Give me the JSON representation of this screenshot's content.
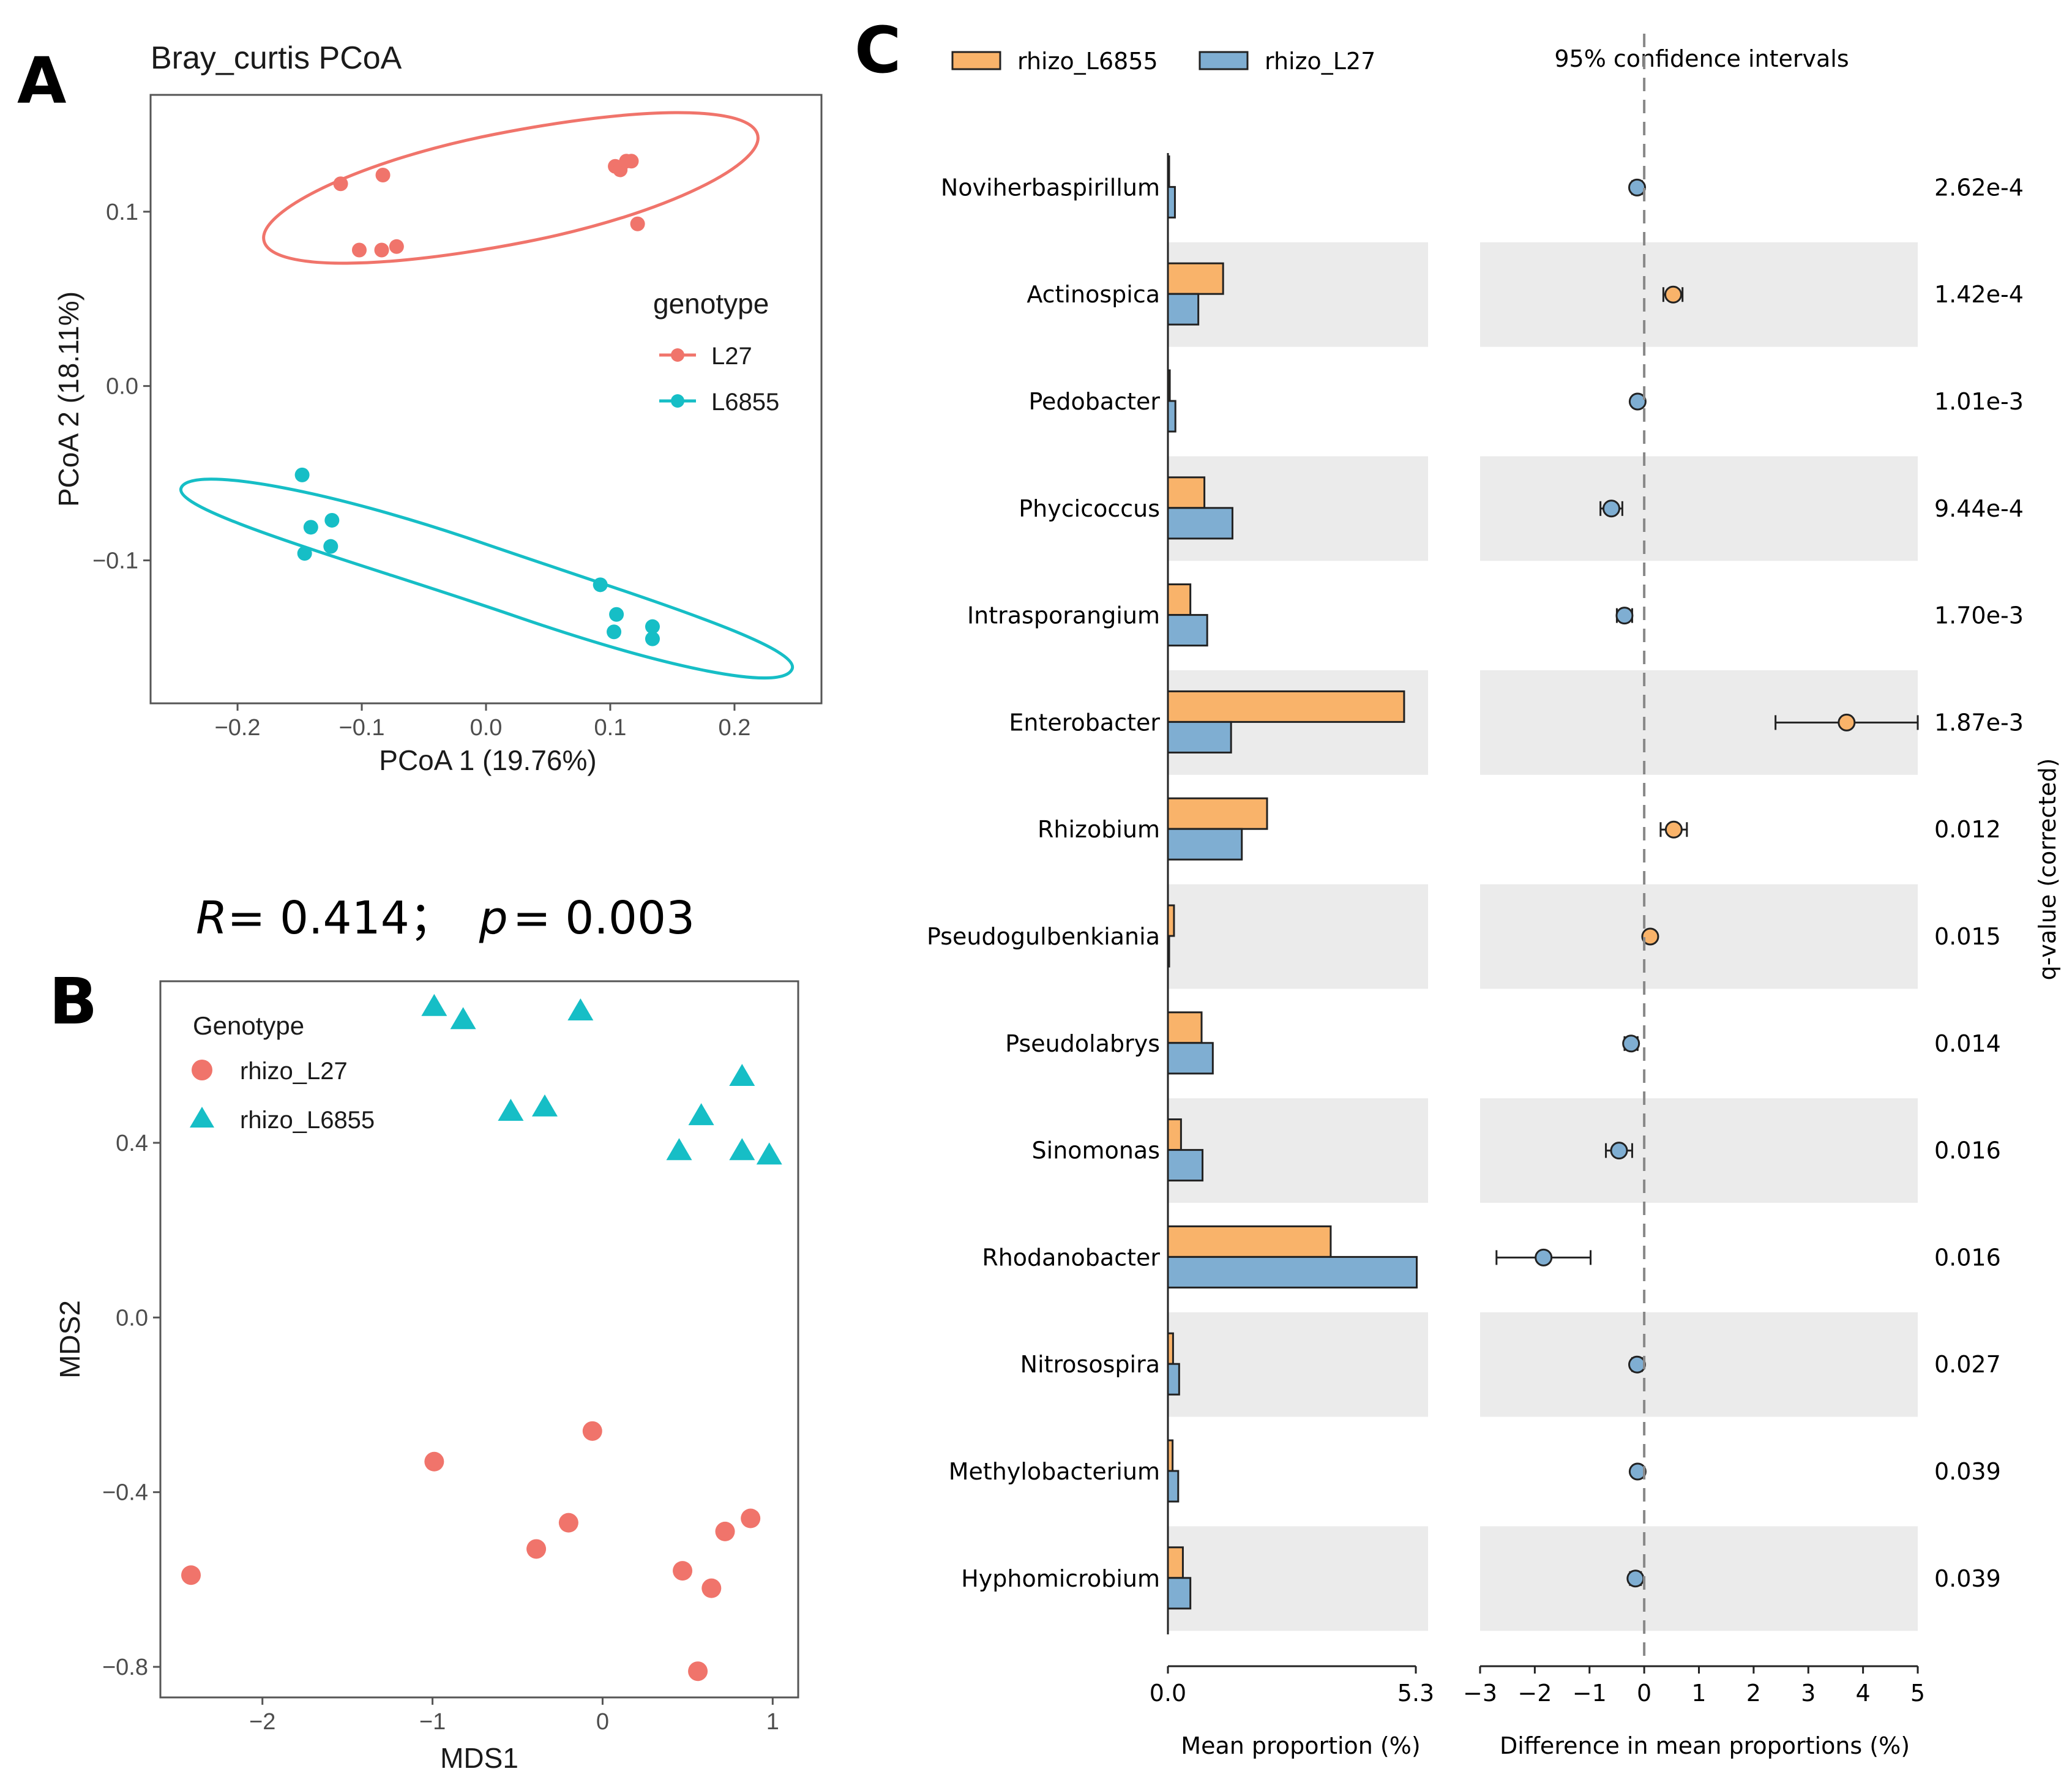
{
  "colors": {
    "l27_red": "#F0746B",
    "l6855_teal": "#16BEC6",
    "orange": "#F9B36A",
    "blue": "#7FAED2",
    "band": "#EBEBEB",
    "axis": "#444444",
    "grid_text": "#4D4D4D"
  },
  "panels": {
    "a_letter": "A",
    "b_letter": "B",
    "c_letter": "C"
  },
  "stats_text": {
    "r_symbol": "R",
    "r_value": "= 0.414；",
    "p_symbol": "p",
    "p_value": "= 0.003"
  },
  "chart_data": [
    {
      "id": "A",
      "type": "scatter",
      "title": "Bray_curtis PCoA",
      "xlabel": "PCoA 1 (19.76%)",
      "ylabel": "PCoA 2 (18.11%)",
      "xlim": [
        -0.27,
        0.27
      ],
      "ylim": [
        -0.182,
        0.167
      ],
      "xticks": [
        -0.2,
        -0.1,
        0.0,
        0.1,
        0.2
      ],
      "xtick_labels": [
        "−0.2",
        "−0.1",
        "0.0",
        "0.1",
        "0.2"
      ],
      "yticks": [
        0.1,
        0.0,
        -0.1
      ],
      "ytick_labels": [
        "0.1",
        "0.0",
        "−0.1"
      ],
      "legend_title": "genotype",
      "legend_position": "right",
      "ellipses": true,
      "series": [
        {
          "name": "L27",
          "color": "#F0746B",
          "points": [
            [
              -0.117,
              0.116
            ],
            [
              -0.083,
              0.121
            ],
            [
              -0.102,
              0.078
            ],
            [
              -0.084,
              0.078
            ],
            [
              -0.072,
              0.08
            ],
            [
              0.104,
              0.126
            ],
            [
              0.108,
              0.124
            ],
            [
              0.113,
              0.129
            ],
            [
              0.117,
              0.129
            ],
            [
              0.122,
              0.093
            ]
          ]
        },
        {
          "name": "L6855",
          "color": "#16BEC6",
          "points": [
            [
              -0.148,
              -0.051
            ],
            [
              -0.141,
              -0.081
            ],
            [
              -0.124,
              -0.077
            ],
            [
              -0.125,
              -0.092
            ],
            [
              -0.146,
              -0.096
            ],
            [
              0.092,
              -0.114
            ],
            [
              0.105,
              -0.131
            ],
            [
              0.103,
              -0.141
            ],
            [
              0.134,
              -0.138
            ],
            [
              0.134,
              -0.145
            ]
          ]
        }
      ]
    },
    {
      "id": "B",
      "type": "scatter",
      "xlabel": "MDS1",
      "ylabel": "MDS2",
      "xlim": [
        -2.6,
        1.15
      ],
      "ylim": [
        -0.87,
        0.77
      ],
      "xticks": [
        -2,
        -1,
        0,
        1
      ],
      "xtick_labels": [
        "−2",
        "−1",
        "0",
        "1"
      ],
      "yticks": [
        0.4,
        0.0,
        -0.4,
        -0.8
      ],
      "ytick_labels": [
        "0.4",
        "0.0",
        "−0.4",
        "−0.8"
      ],
      "legend_title": "Genotype",
      "legend_position": "top-left",
      "series": [
        {
          "name": "rhizo_L27",
          "marker": "circle",
          "color": "#F0746B",
          "points": [
            [
              -2.42,
              -0.59
            ],
            [
              -0.99,
              -0.33
            ],
            [
              -0.06,
              -0.26
            ],
            [
              -0.2,
              -0.47
            ],
            [
              -0.39,
              -0.53
            ],
            [
              0.47,
              -0.58
            ],
            [
              0.64,
              -0.62
            ],
            [
              0.72,
              -0.49
            ],
            [
              0.87,
              -0.46
            ],
            [
              0.56,
              -0.81
            ]
          ]
        },
        {
          "name": "rhizo_L6855",
          "marker": "triangle",
          "color": "#16BEC6",
          "points": [
            [
              -0.99,
              0.71
            ],
            [
              -0.82,
              0.68
            ],
            [
              -0.13,
              0.7
            ],
            [
              -0.54,
              0.47
            ],
            [
              -0.34,
              0.48
            ],
            [
              0.58,
              0.46
            ],
            [
              0.45,
              0.38
            ],
            [
              0.82,
              0.55
            ],
            [
              0.82,
              0.38
            ],
            [
              0.98,
              0.37
            ]
          ]
        }
      ]
    },
    {
      "id": "C",
      "type": "bar",
      "legend": [
        "rhizo_L6855",
        "rhizo_L27"
      ],
      "ci_title": "95% confidence intervals",
      "bar_xlabel": "Mean proportion (%)",
      "bar_xlim": [
        0.0,
        5.3
      ],
      "bar_xtick_labels": [
        "0.0",
        "5.3"
      ],
      "diff_xlabel": "Difference in mean proportions (%)",
      "diff_xlim": [
        -3,
        5
      ],
      "diff_xticks": [
        -3,
        -2,
        -1,
        0,
        1,
        2,
        3,
        4,
        5
      ],
      "diff_xtick_labels": [
        "−3",
        "−2",
        "−1",
        "0",
        "1",
        "2",
        "3",
        "4",
        "5"
      ],
      "qlabel": "q-value (corrected)",
      "categories": [
        "Noviherbaspirillum",
        "Actinospica",
        "Pedobacter",
        "Phycicoccus",
        "Intrasporangium",
        "Enterobacter",
        "Rhizobium",
        "Pseudogulbenkiania",
        "Pseudolabrys",
        "Sinomonas",
        "Rhodanobacter",
        "Nitrosospira",
        "Methylobacterium",
        "Hyphomicrobium"
      ],
      "series": [
        {
          "name": "rhizo_L6855",
          "values": [
            0.02,
            1.18,
            0.04,
            0.78,
            0.48,
            5.05,
            2.12,
            0.13,
            0.72,
            0.28,
            3.48,
            0.11,
            0.1,
            0.32
          ]
        },
        {
          "name": "rhizo_L27",
          "values": [
            0.15,
            0.65,
            0.16,
            1.38,
            0.84,
            1.35,
            1.58,
            0.02,
            0.96,
            0.74,
            5.32,
            0.24,
            0.22,
            0.48
          ]
        }
      ],
      "differences": [
        -0.13,
        0.53,
        -0.12,
        -0.6,
        -0.36,
        3.7,
        0.54,
        0.11,
        -0.24,
        -0.46,
        -1.84,
        -0.13,
        -0.12,
        -0.16
      ],
      "ci_low": [
        -0.22,
        0.35,
        -0.2,
        -0.8,
        -0.5,
        2.4,
        0.3,
        0.03,
        -0.36,
        -0.7,
        -2.7,
        -0.22,
        -0.2,
        -0.26
      ],
      "ci_high": [
        -0.04,
        0.7,
        -0.04,
        -0.4,
        -0.22,
        5.0,
        0.78,
        0.19,
        -0.12,
        -0.22,
        -0.98,
        -0.04,
        -0.04,
        -0.06
      ],
      "qvalues": [
        "2.62e-4",
        "1.42e-4",
        "1.01e-3",
        "9.44e-4",
        "1.70e-3",
        "1.87e-3",
        "0.012",
        "0.015",
        "0.014",
        "0.016",
        "0.016",
        "0.027",
        "0.039",
        "0.039"
      ]
    }
  ]
}
